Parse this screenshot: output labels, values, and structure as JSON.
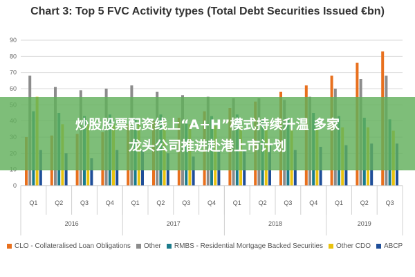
{
  "headline": {
    "line1": "炒股股票配资线上“A+H”模式持续升温 多家",
    "line2": "龙头公司推进赴港上市计划"
  },
  "chart_data": {
    "type": "bar",
    "title": "Chart 3: Top 5 FVC Activity types (Total Debt Securities Issued €bn)",
    "ylim": [
      0,
      90
    ],
    "yticks": [
      0,
      10,
      20,
      30,
      40,
      50,
      60,
      70,
      80,
      90
    ],
    "grid": true,
    "legend_position": "bottom",
    "categories": [
      "Q1",
      "Q2",
      "Q3",
      "Q4",
      "Q1",
      "Q2",
      "Q3",
      "Q4",
      "Q1",
      "Q2",
      "Q3",
      "Q4",
      "Q1",
      "Q2",
      "Q3"
    ],
    "years": [
      {
        "label": "2016",
        "quarters": 4
      },
      {
        "label": "2017",
        "quarters": 4
      },
      {
        "label": "2018",
        "quarters": 4
      },
      {
        "label": "2019",
        "quarters": 3
      }
    ],
    "series": [
      {
        "name": "CLO - Collateralised Loan Obligations",
        "color": "#e8701e",
        "values": [
          30,
          31,
          32,
          33,
          38,
          40,
          42,
          46,
          48,
          52,
          58,
          62,
          68,
          76,
          83
        ]
      },
      {
        "name": "Other",
        "color": "#8c8c8c",
        "values": [
          68,
          61,
          59,
          60,
          62,
          58,
          56,
          55,
          54,
          54,
          53,
          55,
          60,
          66,
          68
        ]
      },
      {
        "name": "RMBS - Residential Mortgage Backed Securities",
        "color": "#1b7c8c",
        "values": [
          46,
          45,
          43,
          44,
          42,
          44,
          40,
          43,
          44,
          40,
          42,
          45,
          43,
          42,
          41
        ]
      },
      {
        "name": "Other CDO",
        "color": "#e9c20e",
        "values": [
          55,
          38,
          38,
          38,
          38,
          40,
          38,
          37,
          36,
          36,
          35,
          35,
          36,
          36,
          34
        ]
      },
      {
        "name": "ABCP",
        "color": "#1f4e99",
        "values": [
          22,
          20,
          17,
          22,
          22,
          20,
          18,
          22,
          22,
          25,
          22,
          24,
          25,
          26,
          26
        ]
      }
    ]
  }
}
